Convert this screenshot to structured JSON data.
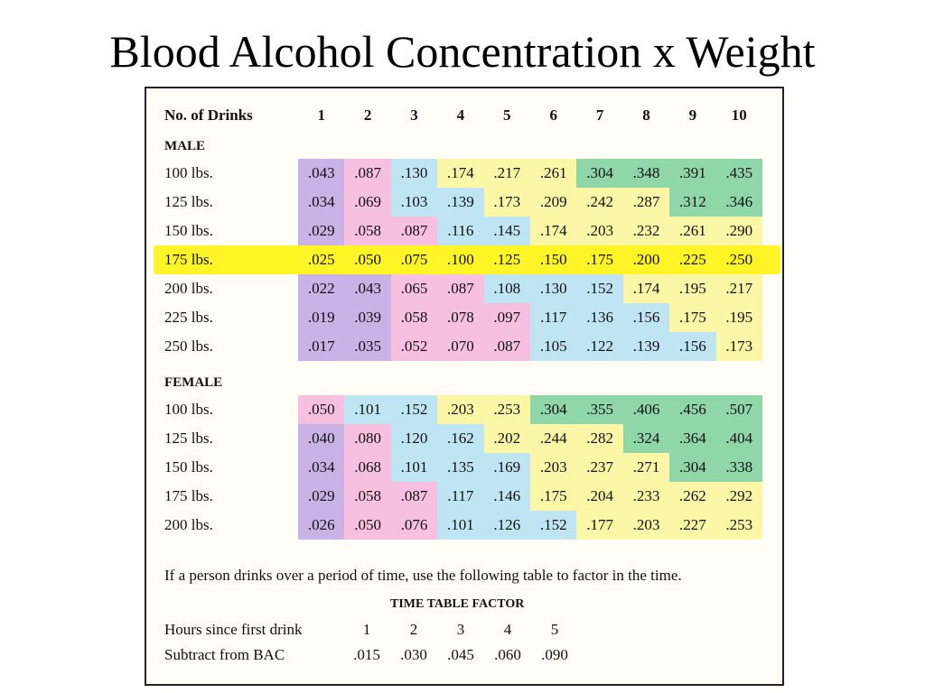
{
  "title": "Blood Alcohol Concentration x Weight",
  "header": {
    "label": "No. of Drinks",
    "drinks": [
      "1",
      "2",
      "3",
      "4",
      "5",
      "6",
      "7",
      "8",
      "9",
      "10"
    ]
  },
  "male": {
    "label": "MALE",
    "rows": [
      {
        "weight": "100 lbs.",
        "values": [
          ".043",
          ".087",
          ".130",
          ".174",
          ".217",
          ".261",
          ".304",
          ".348",
          ".391",
          ".435"
        ]
      },
      {
        "weight": "125 lbs.",
        "values": [
          ".034",
          ".069",
          ".103",
          ".139",
          ".173",
          ".209",
          ".242",
          ".287",
          ".312",
          ".346"
        ]
      },
      {
        "weight": "150 lbs.",
        "values": [
          ".029",
          ".058",
          ".087",
          ".116",
          ".145",
          ".174",
          ".203",
          ".232",
          ".261",
          ".290"
        ]
      },
      {
        "weight": "175 lbs.",
        "values": [
          ".025",
          ".050",
          ".075",
          ".100",
          ".125",
          ".150",
          ".175",
          ".200",
          ".225",
          ".250"
        ]
      },
      {
        "weight": "200 lbs.",
        "values": [
          ".022",
          ".043",
          ".065",
          ".087",
          ".108",
          ".130",
          ".152",
          ".174",
          ".195",
          ".217"
        ]
      },
      {
        "weight": "225 lbs.",
        "values": [
          ".019",
          ".039",
          ".058",
          ".078",
          ".097",
          ".117",
          ".136",
          ".156",
          ".175",
          ".195"
        ]
      },
      {
        "weight": "250 lbs.",
        "values": [
          ".017",
          ".035",
          ".052",
          ".070",
          ".087",
          ".105",
          ".122",
          ".139",
          ".156",
          ".173"
        ]
      }
    ]
  },
  "female": {
    "label": "FEMALE",
    "rows": [
      {
        "weight": "100 lbs.",
        "values": [
          ".050",
          ".101",
          ".152",
          ".203",
          ".253",
          ".304",
          ".355",
          ".406",
          ".456",
          ".507"
        ]
      },
      {
        "weight": "125 lbs.",
        "values": [
          ".040",
          ".080",
          ".120",
          ".162",
          ".202",
          ".244",
          ".282",
          ".324",
          ".364",
          ".404"
        ]
      },
      {
        "weight": "150 lbs.",
        "values": [
          ".034",
          ".068",
          ".101",
          ".135",
          ".169",
          ".203",
          ".237",
          ".271",
          ".304",
          ".338"
        ]
      },
      {
        "weight": "175 lbs.",
        "values": [
          ".029",
          ".058",
          ".087",
          ".117",
          ".146",
          ".175",
          ".204",
          ".233",
          ".262",
          ".292"
        ]
      },
      {
        "weight": "200 lbs.",
        "values": [
          ".026",
          ".050",
          ".076",
          ".101",
          ".126",
          ".152",
          ".177",
          ".203",
          ".227",
          ".253"
        ]
      }
    ]
  },
  "note": "If a person drinks over a period of time, use the following table to factor in the time.",
  "time_table": {
    "title": "TIME TABLE FACTOR",
    "hours_label": "Hours since first drink",
    "hours": [
      "1",
      "2",
      "3",
      "4",
      "5"
    ],
    "subtract_label": "Subtract from BAC",
    "subtract": [
      ".015",
      ".030",
      ".045",
      ".060",
      ".090"
    ]
  },
  "colors": {
    "purple": "#c9b3e6",
    "pink": "#f7bfe0",
    "yellow": "#fbf7a6",
    "blue": "#bfe4f4",
    "green": "#8fd7a8",
    "highlight": "#fff200"
  },
  "highlighted_row": "male.175 lbs."
}
